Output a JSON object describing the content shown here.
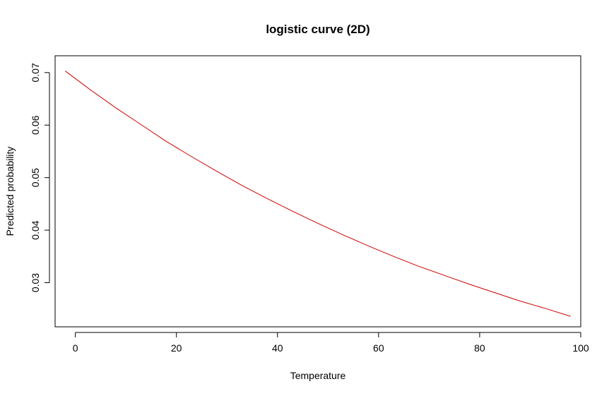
{
  "chart_data": {
    "type": "line",
    "title": "logistic curve (2D)",
    "xlabel": "Temperature",
    "ylabel": "Predicted probability",
    "xlim": [
      -4,
      100
    ],
    "ylim": [
      0.0216,
      0.0732
    ],
    "xticks": [
      0,
      20,
      40,
      60,
      80,
      100
    ],
    "xtick_labels": [
      "0",
      "20",
      "40",
      "60",
      "80",
      "100"
    ],
    "yticks": [
      0.03,
      0.04,
      0.05,
      0.06,
      0.07
    ],
    "ytick_labels": [
      "0.03",
      "0.04",
      "0.05",
      "0.06",
      "0.07"
    ],
    "grid": false,
    "series": [
      {
        "color": "#cc0000",
        "x": [
          -2,
          3,
          8,
          13,
          18,
          23,
          28,
          33,
          38,
          43,
          48,
          53,
          58,
          63,
          68,
          73,
          78,
          83,
          88,
          93,
          98
        ],
        "y": [
          0.0703,
          0.0667,
          0.0633,
          0.0601,
          0.0569,
          0.054,
          0.0512,
          0.0485,
          0.046,
          0.0436,
          0.0413,
          0.0391,
          0.037,
          0.035,
          0.0331,
          0.0314,
          0.0297,
          0.0281,
          0.0265,
          0.0251,
          0.0236
        ]
      }
    ]
  }
}
